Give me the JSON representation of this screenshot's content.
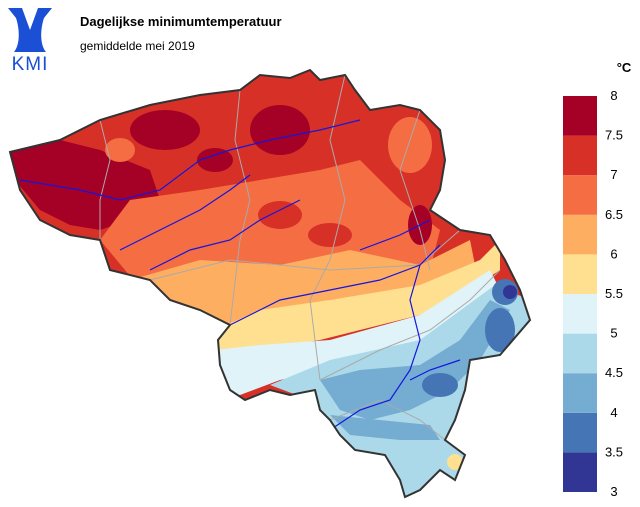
{
  "logo": "KMI",
  "title": "Dagelijkse minimumtemperatuur",
  "subtitle": "gemiddelde mei 2019",
  "colorbar": {
    "unit": "°C",
    "ticks": [
      3,
      3.5,
      4,
      4.5,
      5,
      5.5,
      6,
      6.5,
      7,
      7.5,
      8
    ],
    "colors": [
      "#313695",
      "#4575b4",
      "#74add1",
      "#abd9e9",
      "#e0f3f8",
      "#fee090",
      "#fdae61",
      "#f46d43",
      "#d73027",
      "#a50026"
    ]
  }
}
